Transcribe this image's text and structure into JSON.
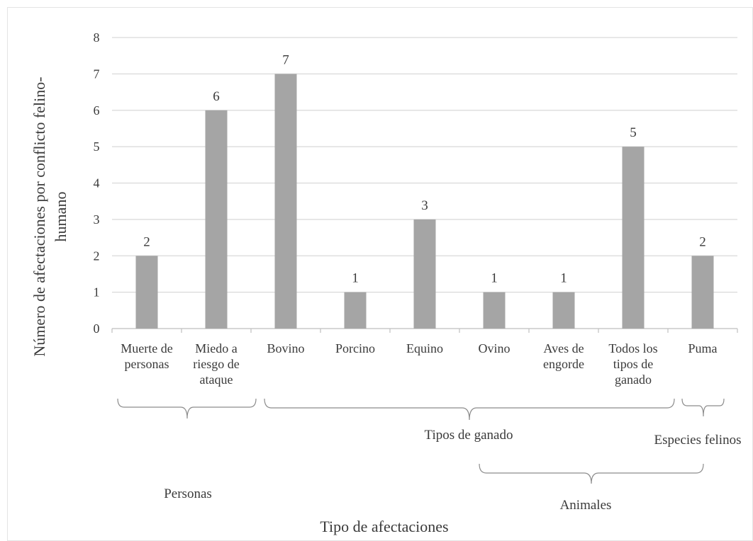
{
  "chart_data": {
    "type": "bar",
    "categories": [
      [
        "Muerte de",
        "personas"
      ],
      [
        "Miedo a",
        "riesgo de",
        "ataque"
      ],
      [
        "Bovino"
      ],
      [
        "Porcino"
      ],
      [
        "Equino"
      ],
      [
        "Ovino"
      ],
      [
        "Aves de",
        "engorde"
      ],
      [
        "Todos los",
        "tipos de",
        "ganado"
      ],
      [
        "Puma"
      ]
    ],
    "values": [
      2,
      6,
      7,
      1,
      3,
      1,
      1,
      5,
      2
    ],
    "data_labels": [
      "2",
      "6",
      "7",
      "1",
      "3",
      "1",
      "1",
      "5",
      "2"
    ],
    "ylim": [
      0,
      8
    ],
    "yticks": [
      "0",
      "1",
      "2",
      "3",
      "4",
      "5",
      "6",
      "7",
      "8"
    ],
    "xlabel": "Tipo de afectaciones",
    "ylabel": [
      "Número de afectaciones por  conflicto felino-",
      "humano"
    ],
    "grid": true,
    "bar_color": "#a5a5a5",
    "grid_color": "#d9d9d9",
    "groups": {
      "personas": "Personas",
      "tipos_ganado": "Tipos de ganado",
      "especies_felinos": "Especies felinos",
      "animales": "Animales"
    }
  }
}
